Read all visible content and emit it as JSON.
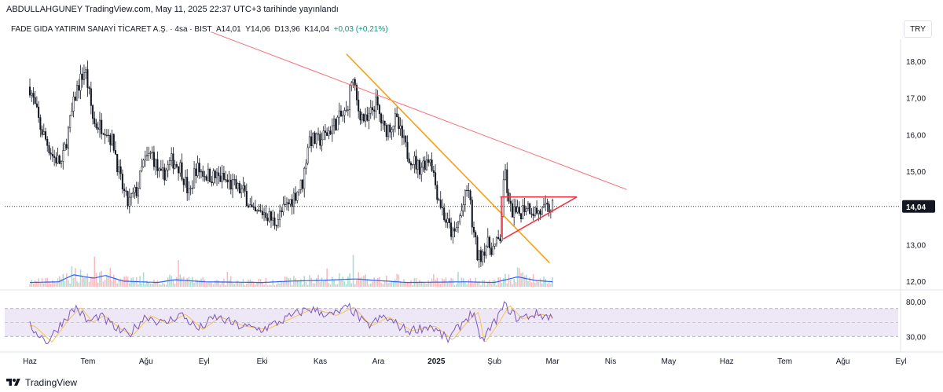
{
  "header": {
    "publish_text": "ABDULLAHGUNEY TradingView.com, May 11, 2025 22:37 UTC+3 tarihinde yayınlandı",
    "symbol": "FADE GIDA YATIRIM SANAYİ TİCARET A.Ş.",
    "interval": "4sa",
    "exchange": "BIST",
    "open": "A14,01",
    "high": "Y14,06",
    "low": "D13,96",
    "close": "K14,04",
    "change": "+0,03 (+0,21%)",
    "currency": "TRY"
  },
  "footer": {
    "brand": "TradingView"
  },
  "colors": {
    "up": "#089981",
    "down": "#f23645",
    "candle": "#131722",
    "volume_ma": "#2962ff",
    "rsi_line": "#7e57c2",
    "rsi_ma": "#f5c453",
    "trend_red": "#f7707a",
    "trend_orange": "#f5a11a",
    "triangle": "#f23645",
    "rsi_band": "#ede7f6"
  },
  "chart_data": [
    {
      "type": "candlestick",
      "title": "FADE GIDA YATIRIM SANAYİ TİCARET A.Ş.",
      "interval": "4sa",
      "y_ticks": [
        "18,00",
        "17,00",
        "16,00",
        "15,00",
        "13,00",
        "12,00"
      ],
      "ylim": [
        11.7,
        18.6
      ],
      "last_price_label": "14,04",
      "last_price": 14.04,
      "x_ticks": [
        "Haz",
        "Tem",
        "Ağu",
        "Eyl",
        "Eki",
        "Kas",
        "Ara",
        "2025",
        "Şub",
        "Mar",
        "Nis",
        "May",
        "Haz",
        "Tem",
        "Ağu",
        "Eyl"
      ],
      "x_tick_index": [
        0,
        1,
        2,
        3,
        4,
        5,
        6,
        7,
        8,
        9,
        10,
        11,
        12,
        13,
        14,
        15
      ],
      "price_anchors": [
        {
          "t": 0,
          "v": 17.3
        },
        {
          "t": 0.18,
          "v": 16.2
        },
        {
          "t": 0.4,
          "v": 15.4
        },
        {
          "t": 0.55,
          "v": 15.2
        },
        {
          "t": 0.7,
          "v": 16.4
        },
        {
          "t": 0.8,
          "v": 17.2
        },
        {
          "t": 0.95,
          "v": 17.8
        },
        {
          "t": 1.1,
          "v": 16.3
        },
        {
          "t": 1.3,
          "v": 16.2
        },
        {
          "t": 1.45,
          "v": 15.7
        },
        {
          "t": 1.55,
          "v": 14.8
        },
        {
          "t": 1.68,
          "v": 14.1
        },
        {
          "t": 1.85,
          "v": 14.5
        },
        {
          "t": 1.95,
          "v": 15.2
        },
        {
          "t": 2.1,
          "v": 15.5
        },
        {
          "t": 2.25,
          "v": 14.8
        },
        {
          "t": 2.45,
          "v": 15.3
        },
        {
          "t": 2.6,
          "v": 15.1
        },
        {
          "t": 2.75,
          "v": 14.3
        },
        {
          "t": 2.85,
          "v": 15.1
        },
        {
          "t": 3.05,
          "v": 14.9
        },
        {
          "t": 3.3,
          "v": 14.8
        },
        {
          "t": 3.5,
          "v": 14.6
        },
        {
          "t": 3.7,
          "v": 14.4
        },
        {
          "t": 3.85,
          "v": 13.8
        },
        {
          "t": 4.05,
          "v": 13.9
        },
        {
          "t": 4.2,
          "v": 13.6
        },
        {
          "t": 4.45,
          "v": 14.1
        },
        {
          "t": 4.7,
          "v": 14.7
        },
        {
          "t": 4.8,
          "v": 15.9
        },
        {
          "t": 4.95,
          "v": 15.8
        },
        {
          "t": 5.1,
          "v": 16.0
        },
        {
          "t": 5.3,
          "v": 16.4
        },
        {
          "t": 5.45,
          "v": 16.6
        },
        {
          "t": 5.55,
          "v": 17.6
        },
        {
          "t": 5.65,
          "v": 16.7
        },
        {
          "t": 5.8,
          "v": 16.3
        },
        {
          "t": 5.95,
          "v": 16.9
        },
        {
          "t": 6.1,
          "v": 16.1
        },
        {
          "t": 6.3,
          "v": 16.4
        },
        {
          "t": 6.5,
          "v": 15.5
        },
        {
          "t": 6.7,
          "v": 15.1
        },
        {
          "t": 6.9,
          "v": 15.4
        },
        {
          "t": 7.0,
          "v": 14.5
        },
        {
          "t": 7.15,
          "v": 13.7
        },
        {
          "t": 7.3,
          "v": 13.2
        },
        {
          "t": 7.45,
          "v": 14.0
        },
        {
          "t": 7.55,
          "v": 14.6
        },
        {
          "t": 7.62,
          "v": 13.5
        },
        {
          "t": 7.72,
          "v": 12.6
        },
        {
          "t": 7.85,
          "v": 13.0
        },
        {
          "t": 8.0,
          "v": 12.9
        },
        {
          "t": 8.1,
          "v": 13.2
        },
        {
          "t": 8.18,
          "v": 15.1
        },
        {
          "t": 8.25,
          "v": 14.0
        },
        {
          "t": 8.4,
          "v": 13.8
        },
        {
          "t": 8.55,
          "v": 14.1
        },
        {
          "t": 8.7,
          "v": 13.9
        },
        {
          "t": 8.85,
          "v": 13.9
        },
        {
          "t": 9.0,
          "v": 14.04
        }
      ],
      "trendlines": [
        {
          "name": "long downtrend",
          "color": "red",
          "from": [
            3.12,
            18.8
          ],
          "to": [
            10.28,
            14.5
          ]
        },
        {
          "name": "descending trend",
          "color": "orange",
          "from": [
            5.45,
            18.2
          ],
          "to": [
            8.95,
            12.5
          ]
        },
        {
          "name": "triangle top",
          "color": "triangle",
          "from": [
            8.1,
            14.3
          ],
          "to": [
            9.42,
            14.3
          ]
        },
        {
          "name": "triangle support",
          "color": "triangle",
          "from": [
            8.15,
            13.15
          ],
          "to": [
            9.42,
            14.3
          ]
        },
        {
          "name": "triangle left",
          "color": "triangle",
          "from": [
            8.12,
            13.2
          ],
          "to": [
            8.12,
            14.3
          ]
        }
      ]
    },
    {
      "type": "bar",
      "title": "Volume",
      "values_profile": "relative",
      "ma_anchors": [
        {
          "t": 0,
          "v": 0.3
        },
        {
          "t": 0.5,
          "v": 0.35
        },
        {
          "t": 0.75,
          "v": 0.85
        },
        {
          "t": 1.1,
          "v": 0.6
        },
        {
          "t": 1.3,
          "v": 0.8
        },
        {
          "t": 1.6,
          "v": 0.4
        },
        {
          "t": 2.2,
          "v": 0.3
        },
        {
          "t": 2.5,
          "v": 0.5
        },
        {
          "t": 3.0,
          "v": 0.35
        },
        {
          "t": 4.0,
          "v": 0.3
        },
        {
          "t": 4.5,
          "v": 0.4
        },
        {
          "t": 5.0,
          "v": 0.45
        },
        {
          "t": 5.6,
          "v": 0.55
        },
        {
          "t": 6.5,
          "v": 0.3
        },
        {
          "t": 7.5,
          "v": 0.35
        },
        {
          "t": 8.0,
          "v": 0.3
        },
        {
          "t": 8.4,
          "v": 0.7
        },
        {
          "t": 8.7,
          "v": 0.45
        },
        {
          "t": 9.0,
          "v": 0.35
        }
      ]
    },
    {
      "type": "line",
      "title": "RSI",
      "y_ticks": [
        "80,00",
        "30,00"
      ],
      "ylim": [
        10,
        90
      ],
      "bands": [
        70,
        50,
        30
      ],
      "rsi_anchors": [
        {
          "t": 0,
          "v": 45
        },
        {
          "t": 0.3,
          "v": 22
        },
        {
          "t": 0.6,
          "v": 55
        },
        {
          "t": 0.8,
          "v": 72
        },
        {
          "t": 1.0,
          "v": 50
        },
        {
          "t": 1.2,
          "v": 60
        },
        {
          "t": 1.5,
          "v": 40
        },
        {
          "t": 1.7,
          "v": 32
        },
        {
          "t": 2.0,
          "v": 60
        },
        {
          "t": 2.3,
          "v": 48
        },
        {
          "t": 2.6,
          "v": 62
        },
        {
          "t": 2.9,
          "v": 40
        },
        {
          "t": 3.2,
          "v": 58
        },
        {
          "t": 3.6,
          "v": 45
        },
        {
          "t": 4.0,
          "v": 40
        },
        {
          "t": 4.4,
          "v": 55
        },
        {
          "t": 4.8,
          "v": 70
        },
        {
          "t": 5.2,
          "v": 60
        },
        {
          "t": 5.5,
          "v": 72
        },
        {
          "t": 5.8,
          "v": 45
        },
        {
          "t": 6.1,
          "v": 58
        },
        {
          "t": 6.5,
          "v": 38
        },
        {
          "t": 6.9,
          "v": 45
        },
        {
          "t": 7.2,
          "v": 25
        },
        {
          "t": 7.5,
          "v": 55
        },
        {
          "t": 7.65,
          "v": 65
        },
        {
          "t": 7.75,
          "v": 20
        },
        {
          "t": 8.0,
          "v": 50
        },
        {
          "t": 8.18,
          "v": 75
        },
        {
          "t": 8.4,
          "v": 55
        },
        {
          "t": 8.7,
          "v": 62
        },
        {
          "t": 9.0,
          "v": 58
        }
      ]
    }
  ]
}
